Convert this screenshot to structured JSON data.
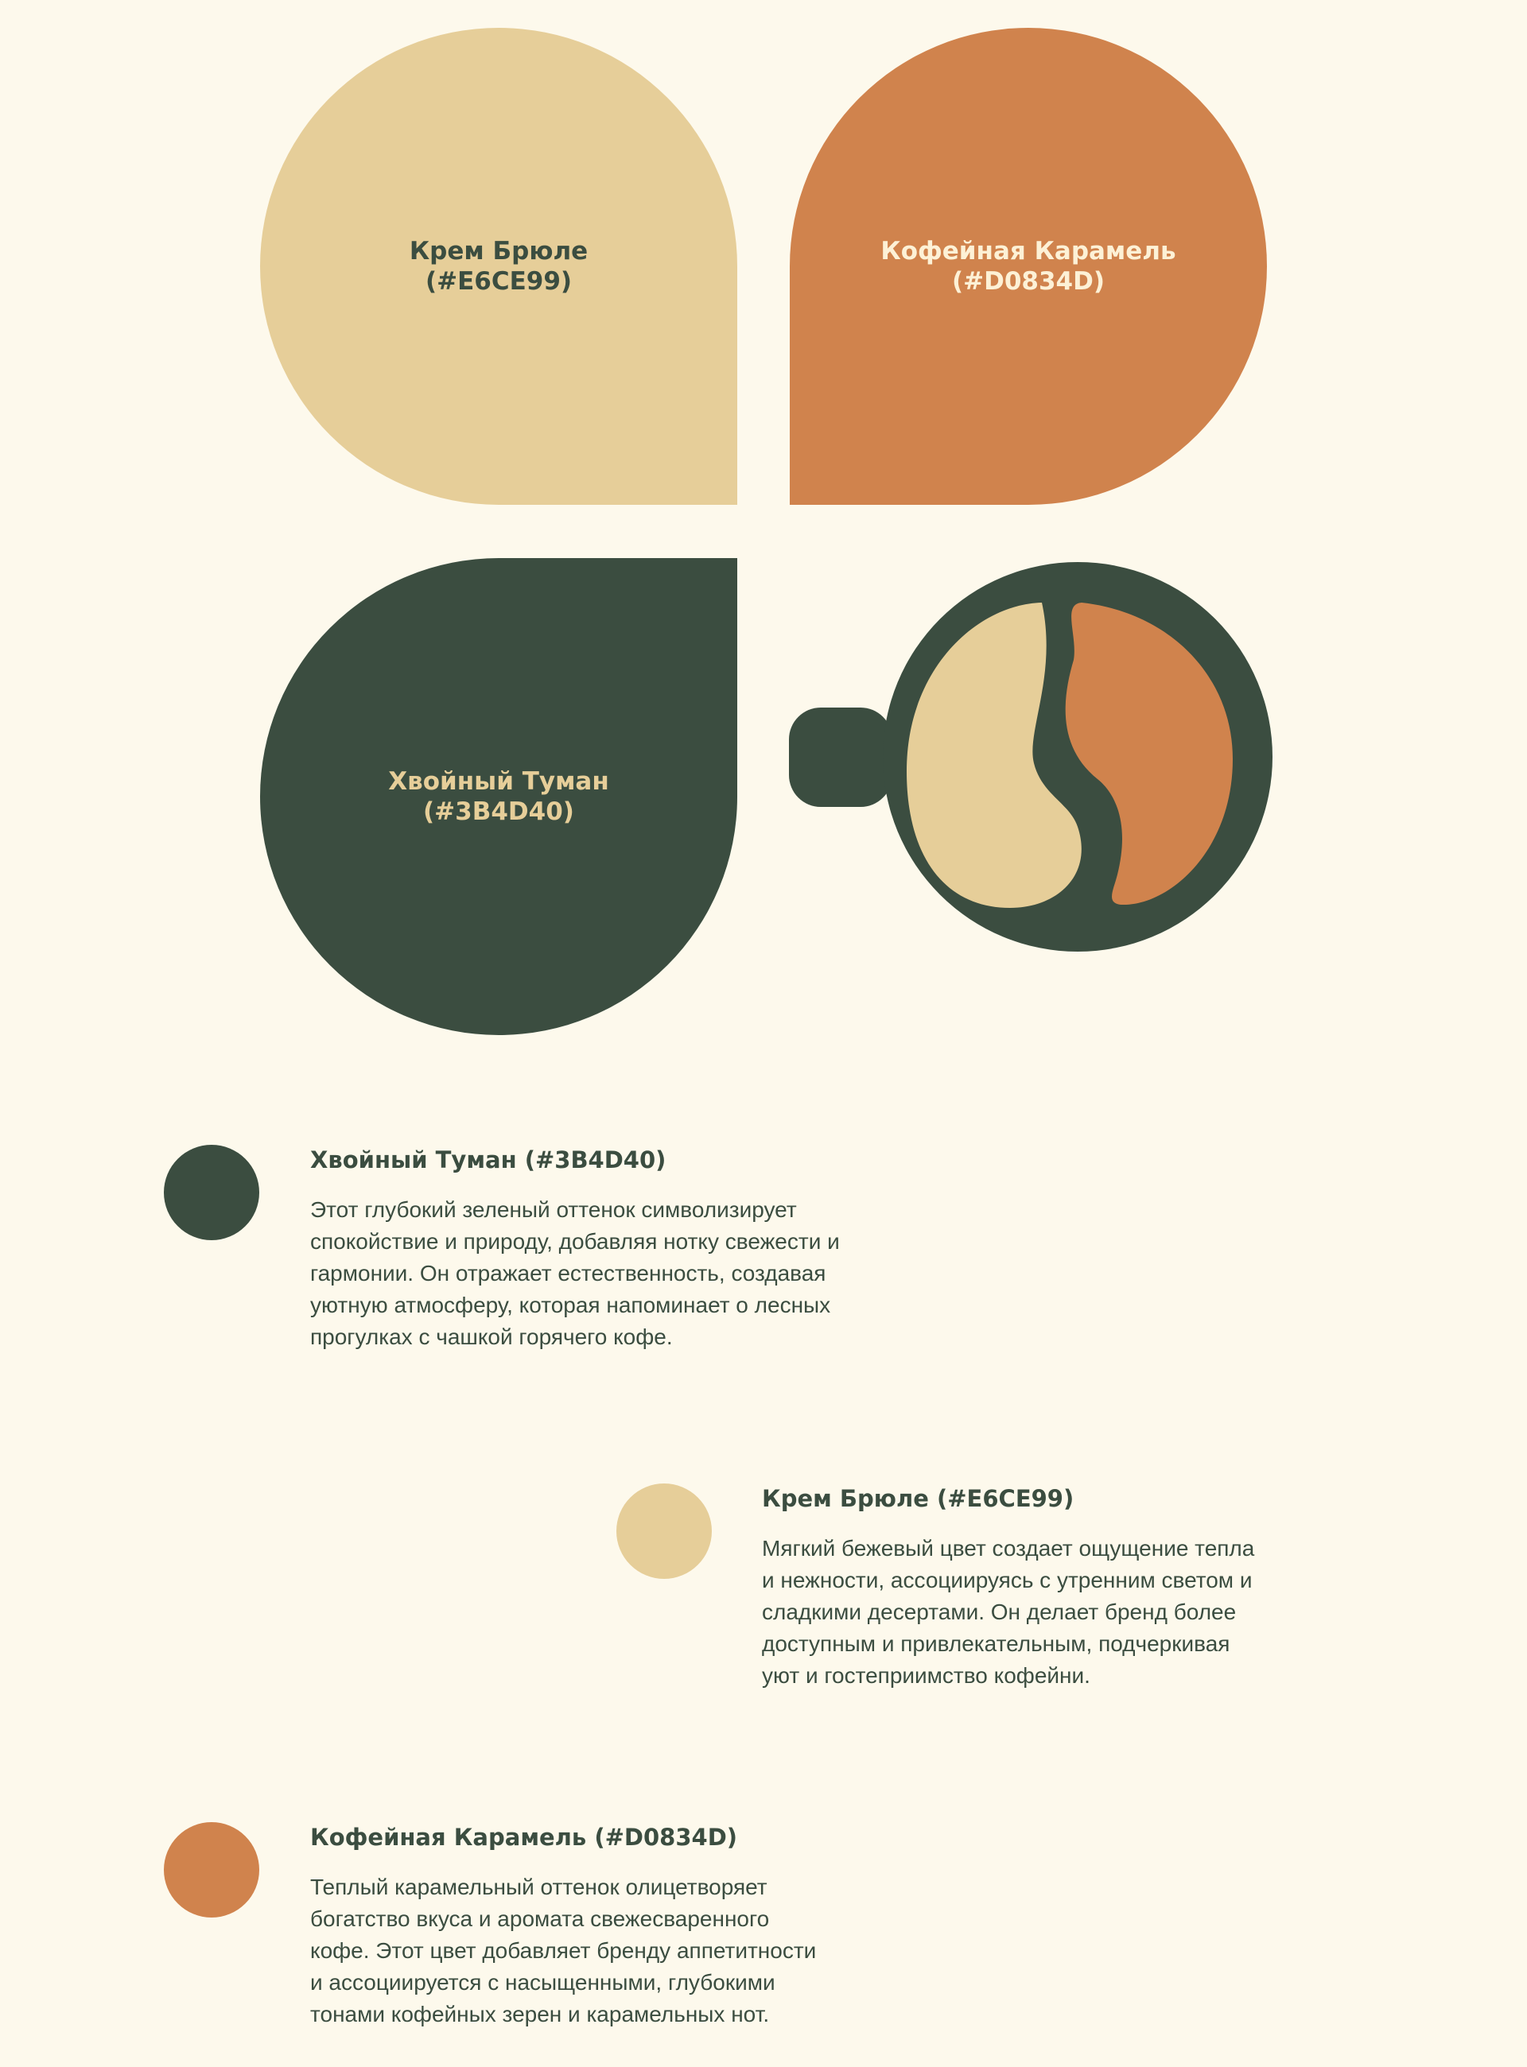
{
  "colors": {
    "fog": "#3B4D40",
    "creme": "#E6CE99",
    "caramel": "#D0834D",
    "background": "#FDF9EC"
  },
  "petals": {
    "creme": "Крем Брюле\n(#E6CE99)",
    "caramel": "Кофейная Карамель\n(#D0834D)",
    "fog": "Хвойный Туман\n(#3B4D40)"
  },
  "logo_icon": "coffee-cup-bean-icon",
  "swatches": [
    {
      "title": "Хвойный Туман (#3B4D40)",
      "text": "Этот глубокий зеленый оттенок символизирует\nспокойствие и природу, добавляя нотку свежести и\nгармонии. Он отражает естественность, создавая\nуютную атмосферу, которая напоминает о лесных\nпрогулках с чашкой горячего кофе."
    },
    {
      "title": "Крем Брюле (#E6CE99)",
      "text": "Мягкий бежевый цвет создает ощущение тепла\nи нежности, ассоциируясь с утренним светом и\nсладкими десертами. Он делает бренд более\nдоступным и привлекательным, подчеркивая\nуют и гостеприимство кофейни."
    },
    {
      "title": "Кофейная Карамель (#D0834D)",
      "text": "Теплый карамельный оттенок олицетворяет\nбогатство вкуса и аромата свежесваренного\nкофе. Этот цвет добавляет бренду аппетитности\nи ассоциируется с насыщенными, глубокими\nтонами кофейных зерен и карамельных нот."
    }
  ]
}
